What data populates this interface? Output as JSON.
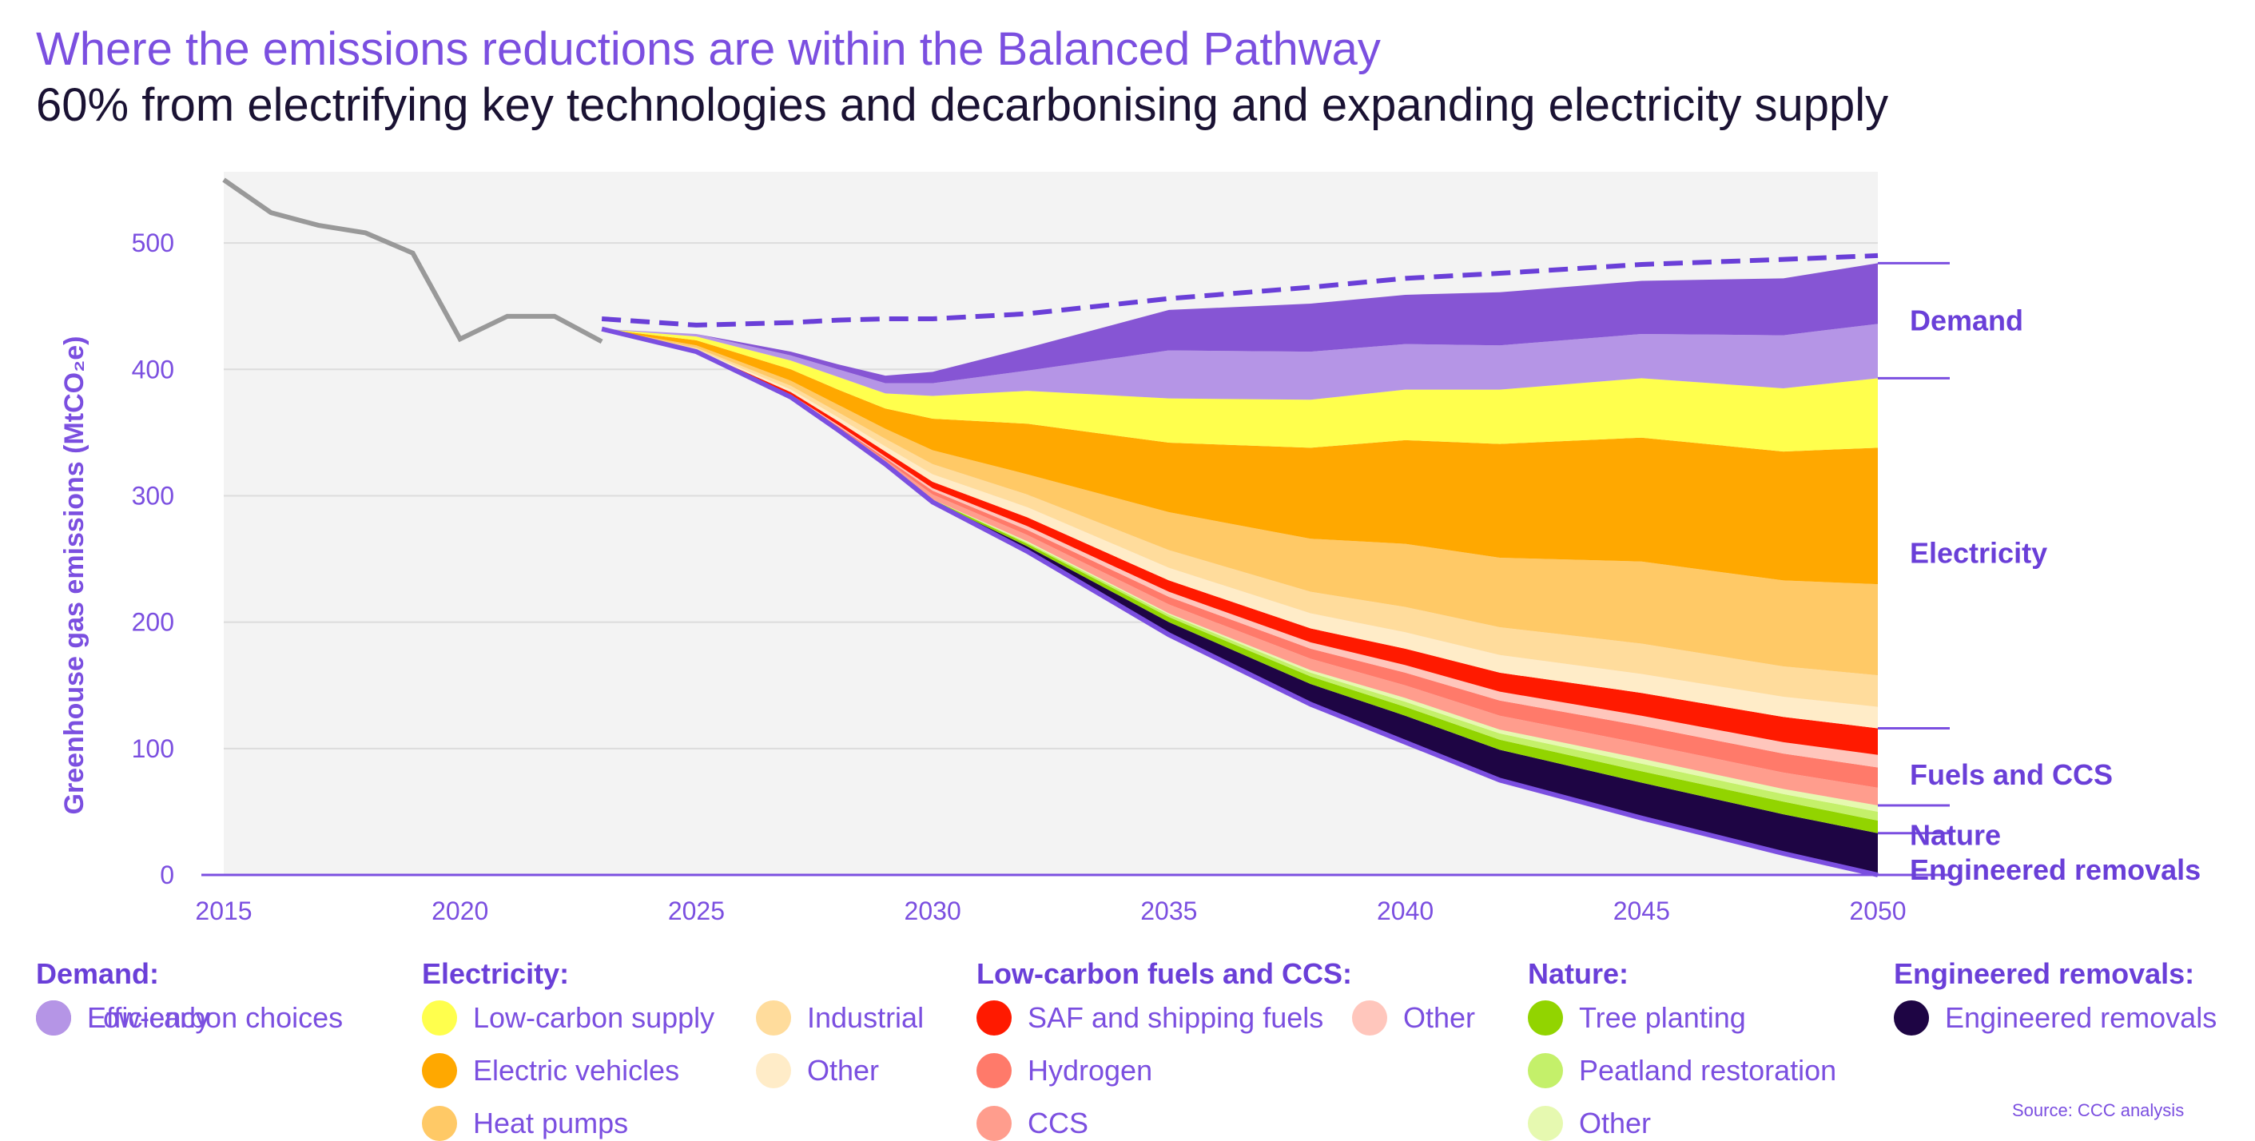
{
  "title": "Where the emissions reductions are within the Balanced Pathway",
  "subtitle": "60% from electrifying key technologies and decarbonising and expanding electricity supply",
  "source": "Source: CCC analysis",
  "chart_data": {
    "type": "area",
    "ylabel": "Greenhouse gas emissions (MtCO₂e)",
    "xlim": [
      2015,
      2050
    ],
    "ylim": [
      0,
      550
    ],
    "x_ticks": [
      "2015",
      "2020",
      "2025",
      "2030",
      "2035",
      "2040",
      "2045",
      "2050"
    ],
    "y_ticks": [
      "0",
      "100",
      "200",
      "300",
      "400",
      "500"
    ],
    "grid": "horizontal",
    "legend_position": "bottom",
    "historical": {
      "x": [
        2015,
        2016,
        2017,
        2018,
        2019,
        2020,
        2021,
        2022,
        2023
      ],
      "values": [
        550,
        524,
        514,
        508,
        492,
        424,
        442,
        442,
        422
      ]
    },
    "x": [
      2023,
      2025,
      2027,
      2028,
      2029,
      2030,
      2032,
      2035,
      2038,
      2040,
      2042,
      2045,
      2048,
      2050
    ],
    "baseline": [
      440,
      435,
      437,
      439,
      440,
      440,
      444,
      456,
      465,
      472,
      476,
      483,
      487,
      490
    ],
    "pathway": [
      432,
      414,
      378,
      352,
      325,
      295,
      256,
      190,
      135,
      105,
      75,
      45,
      17,
      0
    ],
    "series": [
      {
        "name": "Engineered removals",
        "group": "Engineered removals",
        "color": "#1e0544",
        "values": [
          0,
          0,
          0,
          0,
          0,
          1,
          4,
          10,
          16,
          21,
          24,
          28,
          31,
          33
        ]
      },
      {
        "name": "Tree planting",
        "group": "Nature",
        "color": "#92d400",
        "values": [
          0,
          0,
          0,
          0,
          0,
          1,
          2,
          4,
          6,
          7,
          8,
          9,
          10,
          10
        ]
      },
      {
        "name": "Peatland restoration",
        "group": "Nature",
        "color": "#c4f06a",
        "values": [
          0,
          0,
          0,
          0,
          0,
          0,
          1,
          2,
          3,
          4,
          5,
          6,
          6,
          7
        ]
      },
      {
        "name": "Other",
        "group": "Nature",
        "color": "#e6f9b0",
        "values": [
          0,
          0,
          0,
          0,
          0,
          0,
          1,
          1,
          2,
          3,
          3,
          4,
          4,
          5
        ]
      },
      {
        "name": "CCS",
        "group": "Low-carbon fuels and CCS",
        "color": "#ff9d8d",
        "values": [
          0,
          0,
          1,
          2,
          3,
          4,
          5,
          7,
          9,
          10,
          11,
          12,
          13,
          14
        ]
      },
      {
        "name": "Hydrogen",
        "group": "Low-carbon fuels and CCS",
        "color": "#ff7a6a",
        "values": [
          0,
          0,
          1,
          1,
          2,
          3,
          4,
          6,
          8,
          10,
          12,
          14,
          15,
          16
        ]
      },
      {
        "name": "Other",
        "group": "Low-carbon fuels and CCS",
        "color": "#ffc6bc",
        "values": [
          0,
          0,
          0,
          1,
          1,
          2,
          3,
          4,
          5,
          6,
          7,
          8,
          9,
          10
        ]
      },
      {
        "name": "SAF and shipping fuels",
        "group": "Low-carbon fuels and CCS",
        "color": "#ff1a00",
        "values": [
          0,
          1,
          2,
          3,
          4,
          5,
          7,
          9,
          11,
          13,
          15,
          18,
          20,
          21
        ]
      },
      {
        "name": "Other",
        "group": "Electricity",
        "color": "#ffecc8",
        "values": [
          0,
          1,
          2,
          3,
          4,
          6,
          8,
          10,
          12,
          13,
          14,
          15,
          16,
          17
        ]
      },
      {
        "name": "Industrial",
        "group": "Electricity",
        "color": "#ffdc9c",
        "values": [
          0,
          1,
          3,
          4,
          6,
          8,
          10,
          14,
          17,
          20,
          22,
          24,
          24,
          25
        ]
      },
      {
        "name": "Heat pumps",
        "group": "Electricity",
        "color": "#ffc966",
        "values": [
          0,
          2,
          4,
          6,
          8,
          11,
          16,
          30,
          42,
          50,
          55,
          65,
          68,
          72
        ]
      },
      {
        "name": "Electric vehicles",
        "group": "Electricity",
        "color": "#ffa800",
        "values": [
          0,
          4,
          9,
          12,
          16,
          25,
          40,
          55,
          72,
          82,
          90,
          98,
          102,
          108
        ]
      },
      {
        "name": "Low-carbon supply",
        "group": "Electricity",
        "color": "#ffff4d",
        "values": [
          0,
          3,
          7,
          10,
          12,
          18,
          26,
          35,
          38,
          40,
          43,
          47,
          50,
          55
        ]
      },
      {
        "name": "Efficiency",
        "group": "Demand",
        "color": "#b595e6",
        "values": [
          0,
          2,
          4,
          6,
          8,
          10,
          16,
          38,
          38,
          36,
          35,
          35,
          42,
          43
        ]
      },
      {
        "name": "Low-carbon choices",
        "group": "Demand",
        "color": "#8655d4",
        "values": [
          0,
          0,
          3,
          4,
          6,
          9,
          18,
          32,
          38,
          39,
          42,
          42,
          45,
          48
        ]
      }
    ],
    "group_labels": [
      "Demand",
      "Electricity",
      "Fuels and CCS",
      "Nature",
      "Engineered removals"
    ]
  },
  "legend": {
    "groups": [
      {
        "title": "Demand:",
        "items": [
          {
            "label": "Low-carbon choices",
            "color": "#8655d4"
          },
          {
            "label": "Efficiency",
            "color": "#b595e6"
          }
        ]
      },
      {
        "title": "Electricity:",
        "items": [
          {
            "label": "Low-carbon supply",
            "color": "#ffff4d"
          },
          {
            "label": "Electric vehicles",
            "color": "#ffa800"
          },
          {
            "label": "Heat pumps",
            "color": "#ffc966"
          },
          {
            "label": "Industrial",
            "color": "#ffdc9c"
          },
          {
            "label": "Other",
            "color": "#ffecc8"
          }
        ]
      },
      {
        "title": "Low-carbon fuels and CCS:",
        "items": [
          {
            "label": "SAF and shipping fuels",
            "color": "#ff1a00"
          },
          {
            "label": "Hydrogen",
            "color": "#ff7a6a"
          },
          {
            "label": "CCS",
            "color": "#ff9d8d"
          },
          {
            "label": "Other",
            "color": "#ffc6bc"
          }
        ]
      },
      {
        "title": "Nature:",
        "items": [
          {
            "label": "Tree planting",
            "color": "#92d400"
          },
          {
            "label": "Peatland restoration",
            "color": "#c4f06a"
          },
          {
            "label": "Other",
            "color": "#e6f9b0"
          }
        ]
      },
      {
        "title": "Engineered removals:",
        "items": [
          {
            "label": "Engineered removals",
            "color": "#1e0544"
          }
        ]
      }
    ]
  }
}
